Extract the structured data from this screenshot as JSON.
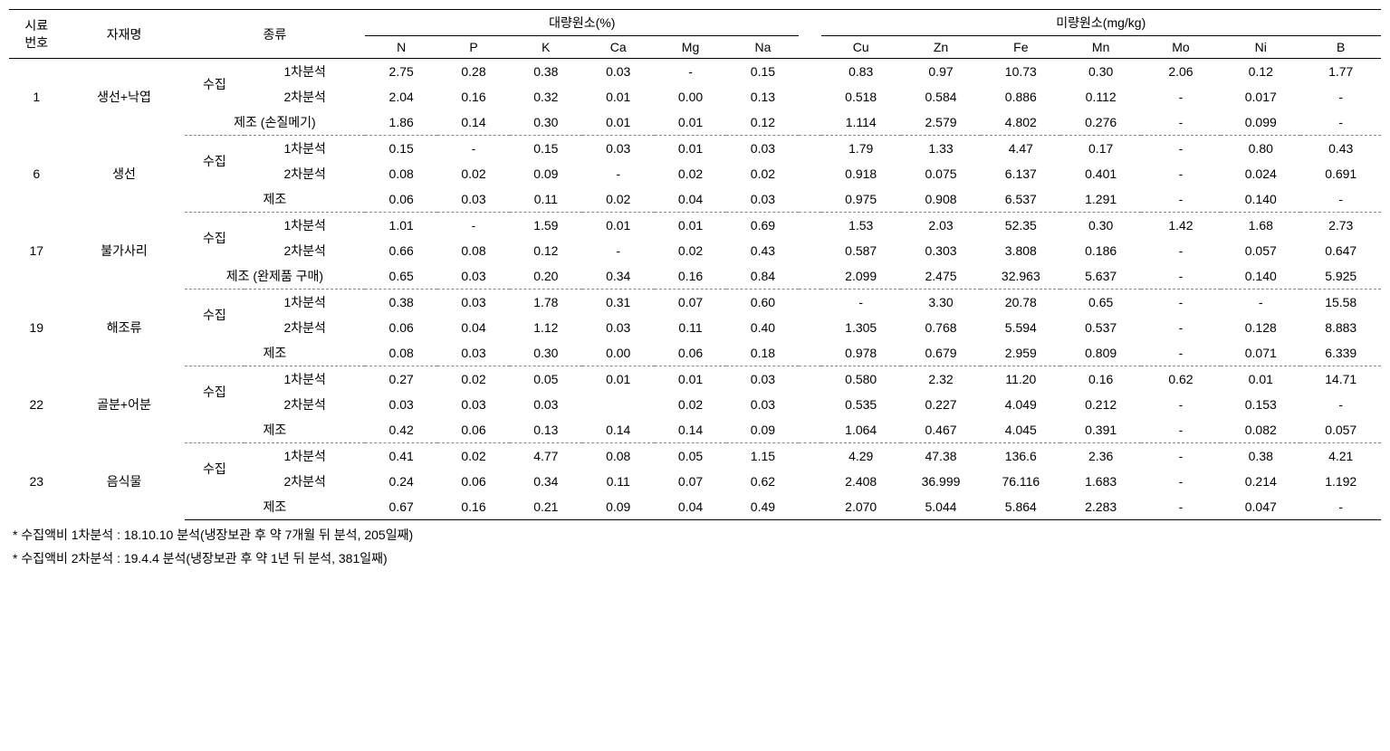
{
  "headers": {
    "sample_no": "시료\n번호",
    "material": "자재명",
    "type": "종류",
    "macro_group": "대량원소(%)",
    "micro_group": "미량원소(mg/kg)",
    "macro_cols": [
      "N",
      "P",
      "K",
      "Ca",
      "Mg",
      "Na"
    ],
    "micro_cols": [
      "Cu",
      "Zn",
      "Fe",
      "Mn",
      "Mo",
      "Ni",
      "B"
    ]
  },
  "type_labels": {
    "collect": "수집",
    "analysis1": "1차분석",
    "analysis2": "2차분석",
    "manufacture": "제조",
    "manufacture_hand": "제조 (손질메기)",
    "manufacture_buy": "제조 (완제품 구매)"
  },
  "samples": [
    {
      "no": "1",
      "material": "생선+낙엽",
      "rows": [
        {
          "type1": "collect",
          "type2": "analysis1",
          "macro": [
            "2.75",
            "0.28",
            "0.38",
            "0.03",
            "-",
            "0.15"
          ],
          "micro": [
            "0.83",
            "0.97",
            "10.73",
            "0.30",
            "2.06",
            "0.12",
            "1.77"
          ]
        },
        {
          "type1": "collect",
          "type2": "analysis2",
          "macro": [
            "2.04",
            "0.16",
            "0.32",
            "0.01",
            "0.00",
            "0.13"
          ],
          "micro": [
            "0.518",
            "0.584",
            "0.886",
            "0.112",
            "-",
            "0.017",
            "-"
          ]
        },
        {
          "type1": "manufacture_hand",
          "type2": "",
          "macro": [
            "1.86",
            "0.14",
            "0.30",
            "0.01",
            "0.01",
            "0.12"
          ],
          "micro": [
            "1.114",
            "2.579",
            "4.802",
            "0.276",
            "-",
            "0.099",
            "-"
          ]
        }
      ]
    },
    {
      "no": "6",
      "material": "생선",
      "rows": [
        {
          "type1": "collect",
          "type2": "analysis1",
          "macro": [
            "0.15",
            "-",
            "0.15",
            "0.03",
            "0.01",
            "0.03"
          ],
          "micro": [
            "1.79",
            "1.33",
            "4.47",
            "0.17",
            "-",
            "0.80",
            "0.43"
          ]
        },
        {
          "type1": "collect",
          "type2": "analysis2",
          "macro": [
            "0.08",
            "0.02",
            "0.09",
            "-",
            "0.02",
            "0.02"
          ],
          "micro": [
            "0.918",
            "0.075",
            "6.137",
            "0.401",
            "-",
            "0.024",
            "0.691"
          ]
        },
        {
          "type1": "manufacture",
          "type2": "",
          "macro": [
            "0.06",
            "0.03",
            "0.11",
            "0.02",
            "0.04",
            "0.03"
          ],
          "micro": [
            "0.975",
            "0.908",
            "6.537",
            "1.291",
            "-",
            "0.140",
            "-"
          ]
        }
      ]
    },
    {
      "no": "17",
      "material": "불가사리",
      "rows": [
        {
          "type1": "collect",
          "type2": "analysis1",
          "macro": [
            "1.01",
            "-",
            "1.59",
            "0.01",
            "0.01",
            "0.69"
          ],
          "micro": [
            "1.53",
            "2.03",
            "52.35",
            "0.30",
            "1.42",
            "1.68",
            "2.73"
          ]
        },
        {
          "type1": "collect",
          "type2": "analysis2",
          "macro": [
            "0.66",
            "0.08",
            "0.12",
            "-",
            "0.02",
            "0.43"
          ],
          "micro": [
            "0.587",
            "0.303",
            "3.808",
            "0.186",
            "-",
            "0.057",
            "0.647"
          ]
        },
        {
          "type1": "manufacture_buy",
          "type2": "",
          "macro": [
            "0.65",
            "0.03",
            "0.20",
            "0.34",
            "0.16",
            "0.84"
          ],
          "micro": [
            "2.099",
            "2.475",
            "32.963",
            "5.637",
            "-",
            "0.140",
            "5.925"
          ]
        }
      ]
    },
    {
      "no": "19",
      "material": "해조류",
      "rows": [
        {
          "type1": "collect",
          "type2": "analysis1",
          "macro": [
            "0.38",
            "0.03",
            "1.78",
            "0.31",
            "0.07",
            "0.60"
          ],
          "micro": [
            "-",
            "3.30",
            "20.78",
            "0.65",
            "-",
            "-",
            "15.58"
          ]
        },
        {
          "type1": "collect",
          "type2": "analysis2",
          "macro": [
            "0.06",
            "0.04",
            "1.12",
            "0.03",
            "0.11",
            "0.40"
          ],
          "micro": [
            "1.305",
            "0.768",
            "5.594",
            "0.537",
            "-",
            "0.128",
            "8.883"
          ]
        },
        {
          "type1": "manufacture",
          "type2": "",
          "macro": [
            "0.08",
            "0.03",
            "0.30",
            "0.00",
            "0.06",
            "0.18"
          ],
          "micro": [
            "0.978",
            "0.679",
            "2.959",
            "0.809",
            "-",
            "0.071",
            "6.339"
          ]
        }
      ]
    },
    {
      "no": "22",
      "material": "골분+어분",
      "rows": [
        {
          "type1": "collect",
          "type2": "analysis1",
          "macro": [
            "0.27",
            "0.02",
            "0.05",
            "0.01",
            "0.01",
            "0.03"
          ],
          "micro": [
            "0.580",
            "2.32",
            "11.20",
            "0.16",
            "0.62",
            "0.01",
            "14.71"
          ]
        },
        {
          "type1": "collect",
          "type2": "analysis2",
          "macro": [
            "0.03",
            "0.03",
            "0.03",
            "",
            "0.02",
            "0.03"
          ],
          "micro": [
            "0.535",
            "0.227",
            "4.049",
            "0.212",
            "-",
            "0.153",
            "-"
          ]
        },
        {
          "type1": "manufacture",
          "type2": "",
          "macro": [
            "0.42",
            "0.06",
            "0.13",
            "0.14",
            "0.14",
            "0.09"
          ],
          "micro": [
            "1.064",
            "0.467",
            "4.045",
            "0.391",
            "-",
            "0.082",
            "0.057"
          ]
        }
      ]
    },
    {
      "no": "23",
      "material": "음식물",
      "rows": [
        {
          "type1": "collect",
          "type2": "analysis1",
          "macro": [
            "0.41",
            "0.02",
            "4.77",
            "0.08",
            "0.05",
            "1.15"
          ],
          "micro": [
            "4.29",
            "47.38",
            "136.6",
            "2.36",
            "-",
            "0.38",
            "4.21"
          ]
        },
        {
          "type1": "collect",
          "type2": "analysis2",
          "macro": [
            "0.24",
            "0.06",
            "0.34",
            "0.11",
            "0.07",
            "0.62"
          ],
          "micro": [
            "2.408",
            "36.999",
            "76.116",
            "1.683",
            "-",
            "0.214",
            "1.192"
          ]
        },
        {
          "type1": "manufacture",
          "type2": "",
          "macro": [
            "0.67",
            "0.16",
            "0.21",
            "0.09",
            "0.04",
            "0.49"
          ],
          "micro": [
            "2.070",
            "5.044",
            "5.864",
            "2.283",
            "-",
            "0.047",
            "-"
          ]
        }
      ]
    }
  ],
  "footnotes": [
    "* 수집액비 1차분석 : 18.10.10 분석(냉장보관 후 약 7개월 뒤 분석, 205일째)",
    "* 수집액비 2차분석 : 19.4.4 분석(냉장보관 후 약 1년 뒤 분석, 381일째)"
  ],
  "styling": {
    "font_family": "Malgun Gothic",
    "font_size_body": 14,
    "font_size_footnote": 14,
    "border_color": "#000000",
    "dashed_color": "#888888",
    "background_color": "#ffffff",
    "text_color": "#000000"
  }
}
